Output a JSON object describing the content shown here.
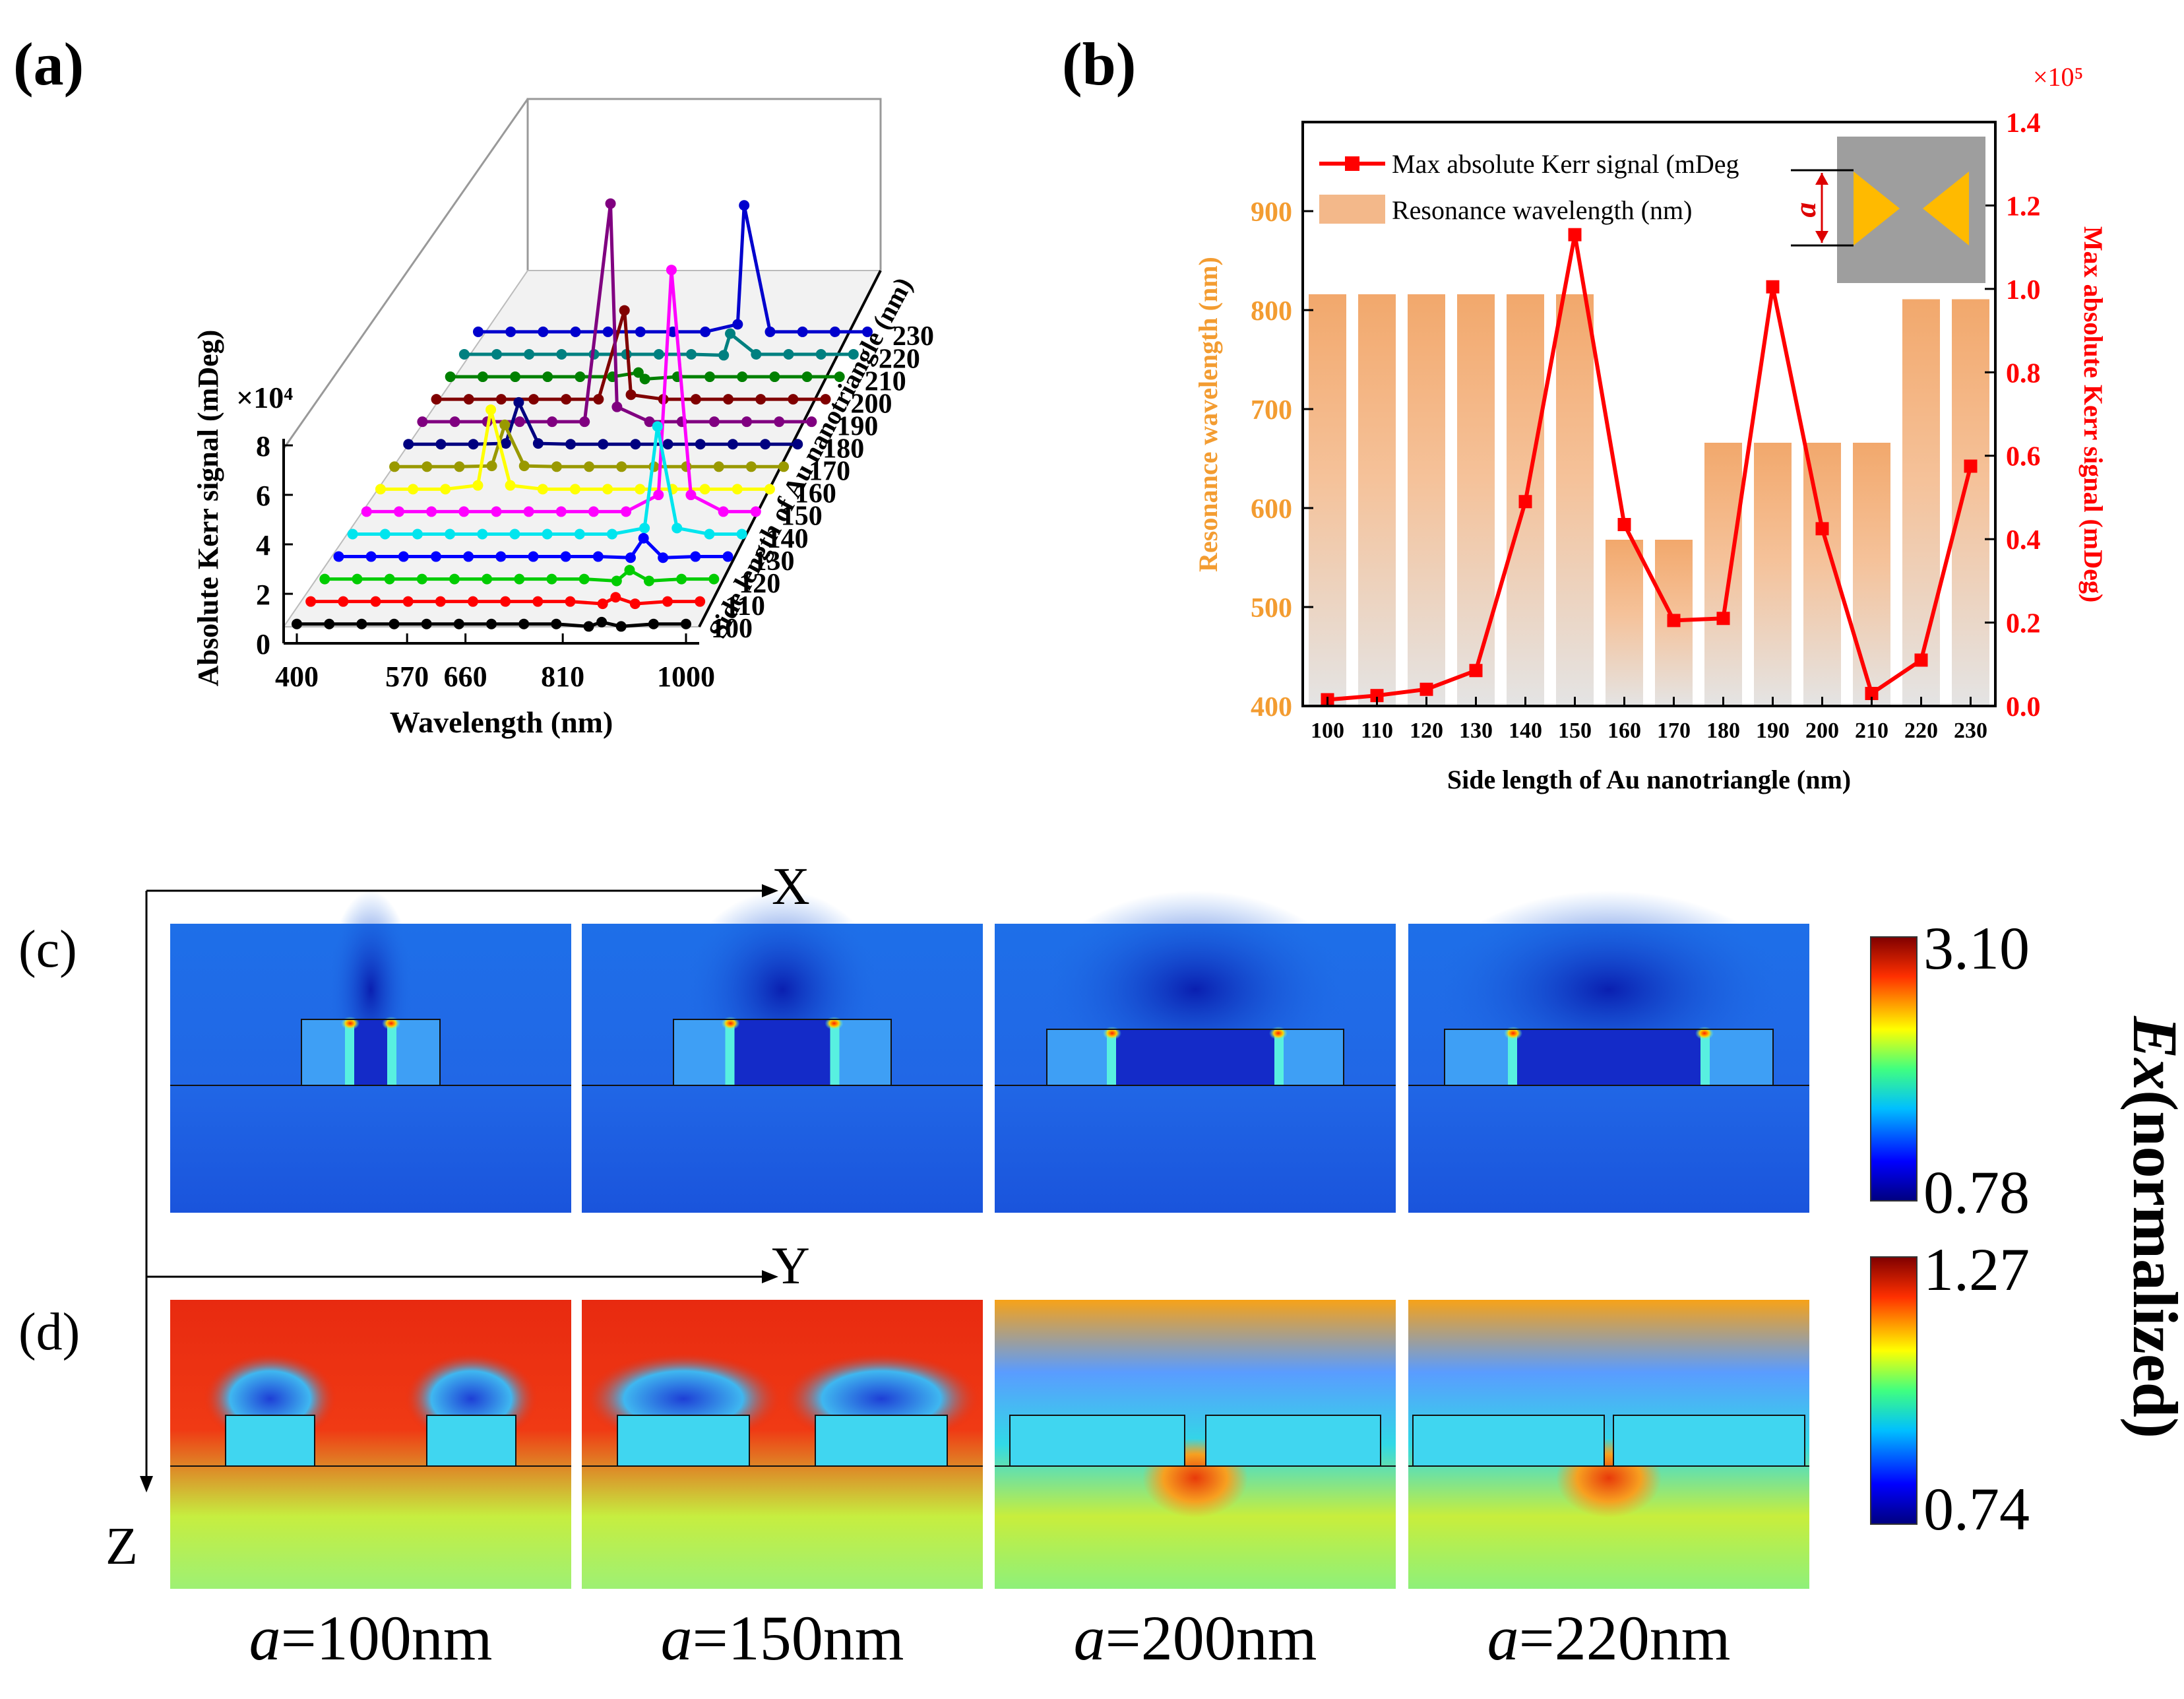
{
  "panels": {
    "a": {
      "label": "(a)"
    },
    "b": {
      "label": "(b)"
    },
    "c": {
      "label": "(c)"
    },
    "d": {
      "label": "(d)"
    }
  },
  "chart_data": [
    {
      "type": "line",
      "panel": "a",
      "title": "",
      "xlabel": "Wavelength (nm)",
      "ylabel": "Absolute Kerr signal (mDeg)",
      "zlabel": "Side length of Au nanotriangle (nm)",
      "y_multiplier": "×10⁴",
      "x_ticks": [
        "400",
        "570",
        "660",
        "810",
        "1000"
      ],
      "y_ticks": [
        "0",
        "2",
        "4",
        "6",
        "8"
      ],
      "series_names": [
        "100",
        "110",
        "120",
        "130",
        "140",
        "150",
        "160",
        "170",
        "180",
        "190",
        "200",
        "210",
        "220",
        "230"
      ],
      "series_colors": [
        "#000000",
        "#ff0000",
        "#00cc00",
        "#0000ff",
        "#00e5ee",
        "#ff00ff",
        "#ffff00",
        "#999900",
        "#000080",
        "#800080",
        "#800000",
        "#008000",
        "#008080",
        "#0000cd"
      ],
      "x": [
        400,
        450,
        500,
        550,
        600,
        650,
        700,
        750,
        800,
        850,
        900,
        950,
        1000
      ],
      "peaks": [
        {
          "series": "100",
          "x": 870,
          "y": 0.2
        },
        {
          "series": "110",
          "x": 870,
          "y": 0.3
        },
        {
          "series": "120",
          "x": 870,
          "y": 0.5
        },
        {
          "series": "130",
          "x": 870,
          "y": 0.9
        },
        {
          "series": "140",
          "x": 870,
          "y": 4.7
        },
        {
          "series": "150",
          "x": 870,
          "y": 10.4
        },
        {
          "series": "160",
          "x": 570,
          "y": 3.5
        },
        {
          "series": "170",
          "x": 570,
          "y": 1.9
        },
        {
          "series": "180",
          "x": 570,
          "y": 1.9
        },
        {
          "series": "190",
          "x": 690,
          "y": 9.4
        },
        {
          "series": "200",
          "x": 690,
          "y": 3.9
        },
        {
          "series": "210",
          "x": 690,
          "y": 0.3
        },
        {
          "series": "220",
          "x": 810,
          "y": 1.0
        },
        {
          "series": "230",
          "x": 810,
          "y": 5.5
        }
      ]
    },
    {
      "type": "bar",
      "panel": "b",
      "title": "",
      "xlabel": "Side length of Au nanotriangle (nm)",
      "ylabel": "Resonance wavelength (nm)",
      "y2label": "Max absolute Kerr signal (mDeg)",
      "y2_multiplier": "×10⁵",
      "categories": [
        "100",
        "110",
        "120",
        "130",
        "140",
        "150",
        "160",
        "170",
        "180",
        "190",
        "200",
        "210",
        "220",
        "230"
      ],
      "ylim": [
        400,
        990
      ],
      "y_ticks": [
        "400",
        "500",
        "600",
        "700",
        "800",
        "900"
      ],
      "y2lim": [
        0,
        1.4
      ],
      "y2_ticks": [
        "0.0",
        "0.2",
        "0.4",
        "0.6",
        "0.8",
        "1.0",
        "1.2",
        "1.4"
      ],
      "series": [
        {
          "name": "Resonance wavelength (nm)",
          "kind": "bar",
          "values": [
            816,
            816,
            816,
            816,
            816,
            816,
            568,
            568,
            666,
            666,
            666,
            666,
            811,
            811
          ]
        },
        {
          "name": "Max absolute Kerr signal (mDeg",
          "kind": "line",
          "values": [
            0.015,
            0.025,
            0.04,
            0.085,
            0.49,
            1.13,
            0.435,
            0.205,
            0.21,
            1.005,
            0.425,
            0.03,
            0.11,
            0.575
          ]
        }
      ],
      "inset_label": "a"
    }
  ],
  "colorbars": {
    "top": {
      "max": "3.10",
      "min": "0.78"
    },
    "bottom": {
      "max": "1.27",
      "min": "0.74"
    },
    "title_italic": "Ex",
    "title_rest": "(normalized)"
  },
  "axes_labels": {
    "x": "X",
    "y": "Y",
    "z": "Z"
  },
  "field_maps": {
    "captions": [
      {
        "italic": "a",
        "rest": "=100nm"
      },
      {
        "italic": "a",
        "rest": "=150nm"
      },
      {
        "italic": "a",
        "rest": "=200nm"
      },
      {
        "italic": "a",
        "rest": "=220nm"
      }
    ]
  }
}
